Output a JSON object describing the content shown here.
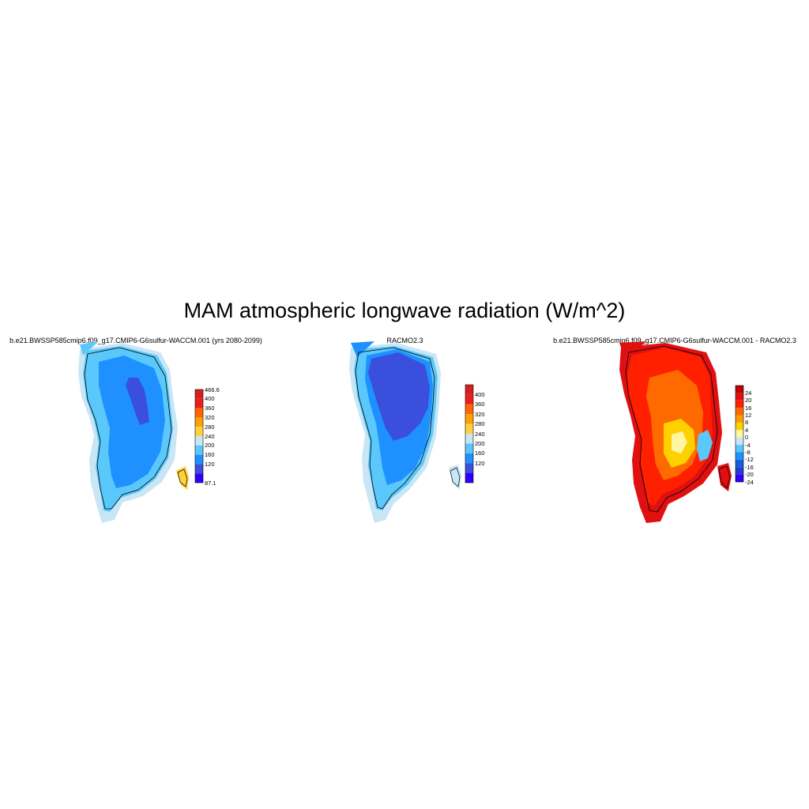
{
  "title": "MAM atmospheric longwave radiation (W/m^2)",
  "panels": [
    {
      "title": "b.e21.BWSSP585cmip6.f09_g17.CMIP6-G6sulfur-WACCM.001 (yrs 2080-2099)",
      "colorbar": {
        "labels": [
          "466.6",
          "400",
          "360",
          "320",
          "280",
          "240",
          "200",
          "160",
          "120",
          "87.1"
        ],
        "colors": [
          "#d62020",
          "#ee1c1c",
          "#ff6600",
          "#ff9f00",
          "#ffd23c",
          "#c8e6f5",
          "#5ac8fa",
          "#1e90ff",
          "#3a4fdc",
          "#3000ff"
        ]
      }
    },
    {
      "title": "RACMO2.3",
      "colorbar": {
        "labels": [
          "400",
          "360",
          "320",
          "280",
          "240",
          "200",
          "160",
          "120"
        ],
        "colors": [
          "#d62020",
          "#ee1c1c",
          "#ff6600",
          "#ff9f00",
          "#ffd23c",
          "#c8e6f5",
          "#5ac8fa",
          "#1e90ff",
          "#3a4fdc",
          "#3000ff"
        ]
      }
    },
    {
      "title": "b.e21.BWSSP585cmip6.f09_g17.CMIP6-G6sulfur-WACCM.001 - RACMO2.3",
      "colorbar": {
        "labels": [
          "24",
          "20",
          "16",
          "12",
          "8",
          "4",
          "0",
          "-4",
          "-8",
          "-12",
          "-16",
          "-20",
          "-24"
        ],
        "colors": [
          "#c00000",
          "#e01010",
          "#ff2000",
          "#ff6a00",
          "#ff9a00",
          "#ffd000",
          "#fff6a0",
          "#c8e6f5",
          "#5ac8fa",
          "#1e90ff",
          "#1060e0",
          "#2a3ad0",
          "#3000ff"
        ]
      }
    }
  ]
}
